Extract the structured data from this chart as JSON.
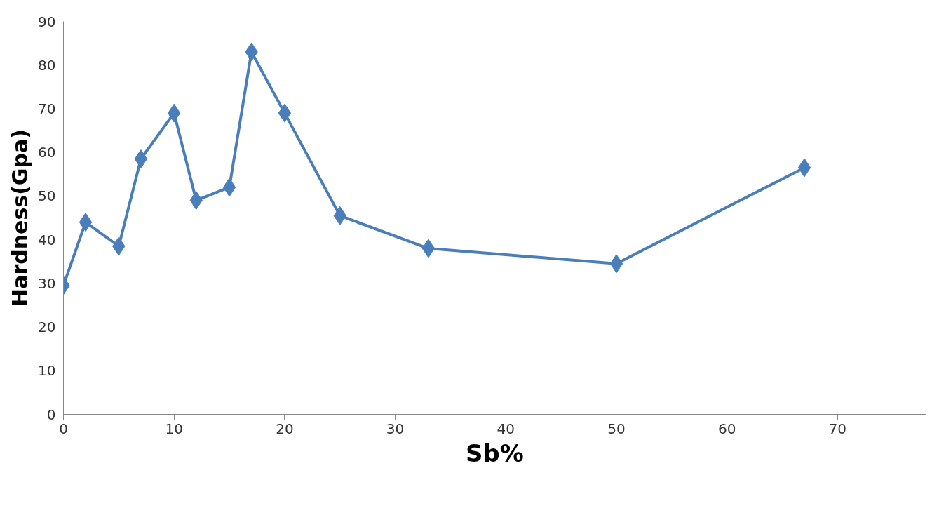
{
  "chart_data": {
    "type": "line",
    "xlabel": "Sb%",
    "ylabel": "Hardness(Gpa)",
    "x": [
      0,
      2,
      5,
      7,
      10,
      12,
      15,
      17,
      20,
      25,
      33,
      50,
      67
    ],
    "series": [
      {
        "color": "#4a7ebb",
        "values": [
          29.5,
          44,
          38.5,
          58.5,
          69,
          49,
          52,
          83,
          69,
          45.5,
          38,
          34.5,
          56.5
        ]
      }
    ],
    "xlim": [
      0,
      78
    ],
    "xticks": [
      0,
      10,
      20,
      30,
      40,
      50,
      60,
      70
    ],
    "ylim": [
      0,
      90
    ],
    "yticks": [
      0,
      10,
      20,
      30,
      40,
      50,
      60,
      70,
      80,
      90
    ],
    "grid": false,
    "marker": "diamond",
    "line_style": "solid"
  }
}
